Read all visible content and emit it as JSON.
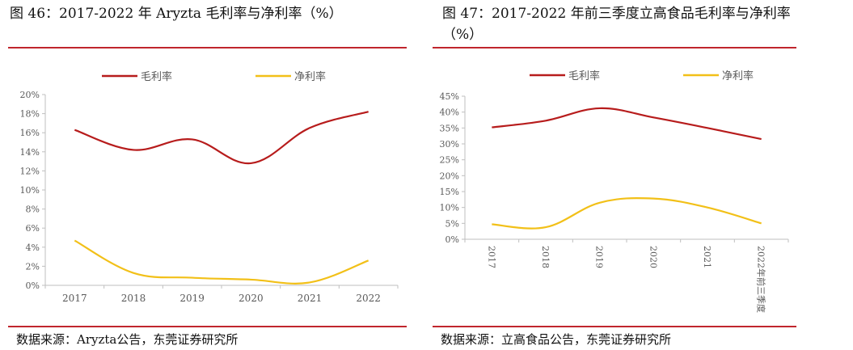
{
  "colors": {
    "accent_red": "#c0262d",
    "gross_line": "#b71c1c",
    "net_line": "#f2c018",
    "axis": "#bfbfbf",
    "text": "#595959"
  },
  "left": {
    "title": "图 46：2017-2022 年 Aryzta 毛利率与净利率（%）",
    "source": "数据来源：Aryzta公告，东莞证券研究所"
  },
  "right": {
    "title": "图 47：2017-2022 年前三季度立高食品毛利率与净利率（%）",
    "source": "数据来源：立高食品公告，东莞证券研究所"
  },
  "chart_data": [
    {
      "type": "line",
      "title": "",
      "xlabel": "",
      "ylabel": "",
      "categories": [
        "2017",
        "2018",
        "2019",
        "2020",
        "2021",
        "2022"
      ],
      "series": [
        {
          "name": "毛利率",
          "values": [
            16.3,
            14.2,
            15.3,
            12.8,
            16.5,
            18.2
          ]
        },
        {
          "name": "净利率",
          "values": [
            4.7,
            1.3,
            0.8,
            0.6,
            0.3,
            2.6
          ]
        }
      ],
      "ylim": [
        0,
        20
      ],
      "yticks": [
        "0%",
        "2%",
        "4%",
        "6%",
        "8%",
        "10%",
        "12%",
        "14%",
        "16%",
        "18%",
        "20%"
      ],
      "legend": "top",
      "grid": false
    },
    {
      "type": "line",
      "title": "",
      "xlabel": "",
      "ylabel": "",
      "categories": [
        "2017",
        "2018",
        "2019",
        "2020",
        "2021",
        "2022年前三季度"
      ],
      "series": [
        {
          "name": "毛利率",
          "values": [
            35.2,
            37.3,
            41.2,
            38.3,
            35.0,
            31.5
          ]
        },
        {
          "name": "净利率",
          "values": [
            4.7,
            3.8,
            11.5,
            12.8,
            10.0,
            5.0
          ]
        }
      ],
      "ylim": [
        0,
        45
      ],
      "yticks": [
        "0%",
        "5%",
        "10%",
        "15%",
        "20%",
        "25%",
        "30%",
        "35%",
        "40%",
        "45%"
      ],
      "legend": "top",
      "grid": false
    }
  ]
}
